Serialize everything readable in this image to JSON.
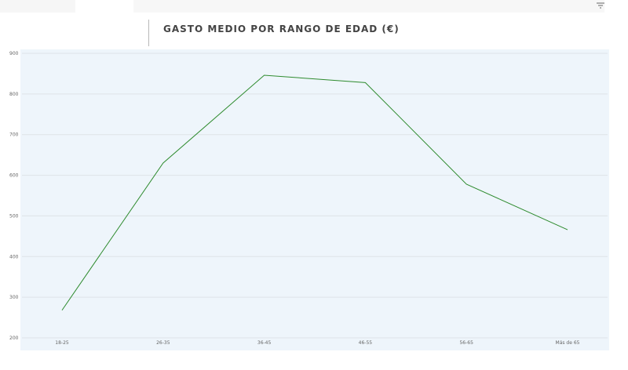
{
  "header": {
    "title": "GASTO MEDIO POR RANGO DE EDAD (€)"
  },
  "colors": {
    "plot_background": "#eef5fb",
    "gridline": "#dde3e8",
    "series_line": "#2e8b2e"
  },
  "icons": {
    "filter": "filter-icon"
  },
  "chart_data": {
    "type": "line",
    "title": "GASTO MEDIO POR RANGO DE EDAD (€)",
    "xlabel": "",
    "ylabel": "",
    "categories": [
      "18-25",
      "26-35",
      "36-45",
      "46-55",
      "56-65",
      "Más de 65"
    ],
    "series": [
      {
        "values": [
          268,
          630,
          846,
          828,
          578,
          466
        ]
      }
    ],
    "ylim": [
      200,
      900
    ],
    "yticks": [
      200,
      300,
      400,
      500,
      600,
      700,
      800,
      900
    ],
    "grid": true,
    "legend": "none"
  }
}
